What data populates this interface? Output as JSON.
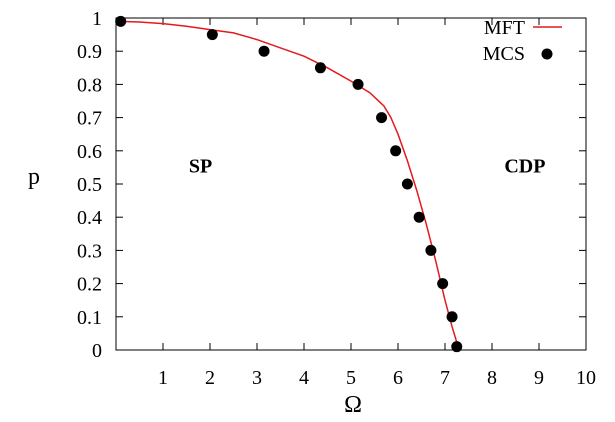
{
  "chart_data": {
    "type": "line",
    "xlabel": "Ω",
    "ylabel": "p",
    "xlim": [
      0,
      10
    ],
    "ylim": [
      0,
      1
    ],
    "x_ticks": [
      "1",
      "2",
      "3",
      "4",
      "5",
      "6",
      "7",
      "8",
      "9",
      "10"
    ],
    "y_ticks": [
      "0",
      "0.1",
      "0.2",
      "0.3",
      "0.4",
      "0.5",
      "0.6",
      "0.7",
      "0.8",
      "0.9",
      "1"
    ],
    "grid": false,
    "legend_position": "top-right",
    "series": [
      {
        "name": "MFT",
        "kind": "line",
        "color": "#e41a1c",
        "x": [
          0.0,
          0.5,
          1.0,
          1.5,
          2.0,
          2.5,
          3.0,
          3.5,
          4.0,
          4.5,
          5.0,
          5.4,
          5.7,
          5.85,
          6.0,
          6.2,
          6.4,
          6.6,
          6.8,
          7.0,
          7.15,
          7.3
        ],
        "y": [
          0.99,
          0.988,
          0.983,
          0.975,
          0.965,
          0.955,
          0.935,
          0.91,
          0.885,
          0.85,
          0.81,
          0.775,
          0.735,
          0.7,
          0.65,
          0.57,
          0.48,
          0.38,
          0.27,
          0.15,
          0.07,
          0.0
        ]
      },
      {
        "name": "MCS",
        "kind": "scatter",
        "color": "#000000",
        "x": [
          0.1,
          2.05,
          3.15,
          4.35,
          5.15,
          5.65,
          5.95,
          6.2,
          6.45,
          6.7,
          6.95,
          7.15,
          7.25
        ],
        "y": [
          0.99,
          0.95,
          0.9,
          0.85,
          0.8,
          0.7,
          0.6,
          0.5,
          0.4,
          0.3,
          0.2,
          0.1,
          0.01
        ]
      }
    ],
    "annotations": [
      {
        "text": "SP",
        "x": 1.8,
        "y": 0.555
      },
      {
        "text": "CDP",
        "x": 8.7,
        "y": 0.555
      }
    ]
  }
}
